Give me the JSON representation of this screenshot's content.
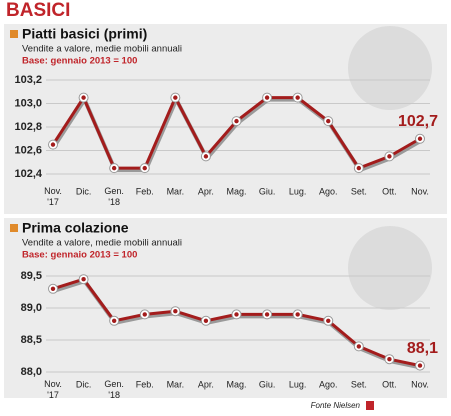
{
  "title": "BASICI",
  "source": "Fonte Nielsen",
  "chart_data": [
    {
      "type": "line",
      "title": "Piatti basici (primi)",
      "subtitle": "Vendite a valore, medie mobili annuali",
      "note": "Base: gennaio 2013 = 100",
      "categories": [
        "Nov.\n'17",
        "Dic.",
        "Gen.\n'18",
        "Feb.",
        "Mar.",
        "Apr.",
        "Mag.",
        "Giu.",
        "Lug.",
        "Ago.",
        "Set.",
        "Ott.",
        "Nov."
      ],
      "values": [
        102.65,
        103.05,
        102.45,
        102.45,
        103.05,
        102.55,
        102.85,
        103.05,
        103.05,
        102.85,
        102.45,
        102.55,
        102.7
      ],
      "value_labels": [
        null,
        null,
        null,
        null,
        null,
        null,
        null,
        null,
        null,
        null,
        null,
        null,
        "102,7"
      ],
      "color": "#a31c1c",
      "ylim": [
        102.4,
        103.2
      ],
      "yticks": [
        {
          "value": 102.4,
          "label": "102,4"
        },
        {
          "value": 102.6,
          "label": "102,6"
        },
        {
          "value": 102.8,
          "label": "102,8"
        },
        {
          "value": 103.0,
          "label": "103,0"
        },
        {
          "value": 103.2,
          "label": "103,2"
        }
      ],
      "grid": true
    },
    {
      "type": "line",
      "title": "Prima colazione",
      "subtitle": "Vendite a valore, medie mobili annuali",
      "note": "Base: gennaio 2013 = 100",
      "categories": [
        "Nov.\n'17",
        "Dic.",
        "Gen.\n'18",
        "Feb.",
        "Mar.",
        "Apr.",
        "Mag.",
        "Giu.",
        "Lug.",
        "Ago.",
        "Set.",
        "Ott.",
        "Nov."
      ],
      "values": [
        89.3,
        89.45,
        88.8,
        88.9,
        88.95,
        88.8,
        88.9,
        88.9,
        88.9,
        88.8,
        88.4,
        88.2,
        88.1
      ],
      "value_labels": [
        null,
        null,
        null,
        null,
        null,
        null,
        null,
        null,
        null,
        null,
        null,
        null,
        "88,1"
      ],
      "color": "#a31c1c",
      "ylim": [
        88.0,
        89.5
      ],
      "yticks": [
        {
          "value": 88.0,
          "label": "88,0"
        },
        {
          "value": 88.5,
          "label": "88,5"
        },
        {
          "value": 89.0,
          "label": "89,0"
        },
        {
          "value": 89.5,
          "label": "89,5"
        }
      ],
      "grid": true
    }
  ]
}
